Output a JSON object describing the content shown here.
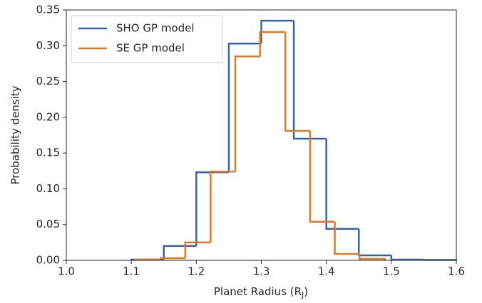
{
  "chart_data": {
    "type": "histogram",
    "xlabel": [
      "Planet Radius (R",
      "J",
      ")"
    ],
    "ylabel": "Probability density",
    "xlim": [
      1.0,
      1.6
    ],
    "ylim": [
      0,
      0.35
    ],
    "xticks": [
      {
        "value": 1.0,
        "label": "1.0"
      },
      1.1,
      1.2,
      1.3,
      1.4,
      1.5,
      1.6
    ],
    "yticks": [
      {
        "value": 0,
        "label": "0.00"
      },
      {
        "value": 0.05,
        "label": "0.05"
      },
      {
        "value": 0.1,
        "label": "0.10"
      },
      {
        "value": 0.15,
        "label": "0.15"
      },
      {
        "value": 0.2,
        "label": "0.20"
      },
      {
        "value": 0.25,
        "label": "0.25"
      },
      {
        "value": 0.3,
        "label": "0.30"
      },
      {
        "value": 0.35,
        "label": "0.35"
      }
    ],
    "legend": "upper left",
    "series": [
      {
        "name": "SHO GP model",
        "color": "#3b64a8",
        "bins": [
          1.1,
          1.15,
          1.2,
          1.25,
          1.3,
          1.35,
          1.4,
          1.45,
          1.5,
          1.55,
          1.6
        ],
        "values": [
          0.001,
          0.02,
          0.123,
          0.303,
          0.335,
          0.17,
          0.044,
          0.007,
          0.001,
          0.0005
        ]
      },
      {
        "name": "SE GP model",
        "color": "#dd7a24",
        "bins": [
          1.106,
          1.145,
          1.183,
          1.222,
          1.26,
          1.298,
          1.337,
          1.375,
          1.413,
          1.451,
          1.49
        ],
        "values": [
          0.001,
          0.003,
          0.025,
          0.124,
          0.285,
          0.319,
          0.181,
          0.054,
          0.009,
          0.002
        ]
      }
    ]
  }
}
